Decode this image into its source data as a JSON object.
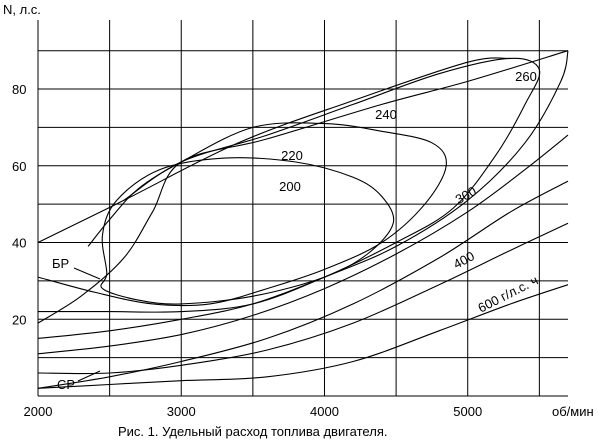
{
  "chart_data": {
    "type": "line",
    "title": "",
    "caption": "Рис. 1. Удельный расход топлива двигателя.",
    "xlabel": "об/мин",
    "ylabel": "N, л.с.",
    "xlim": [
      2000,
      5700
    ],
    "ylim": [
      0,
      98
    ],
    "x_ticks": [
      2000,
      3000,
      4000,
      5000
    ],
    "y_ticks": [
      20,
      40,
      60,
      80
    ],
    "grid": true,
    "colors": {
      "line": "#000000",
      "grid": "#000000",
      "background": "#ffffff"
    },
    "boundaries": [
      {
        "label": "",
        "points": [
          [
            2000,
            40
          ],
          [
            2600,
            51
          ],
          [
            3400,
            66
          ],
          [
            4200,
            77
          ],
          [
            5000,
            87
          ],
          [
            5300,
            88
          ]
        ]
      },
      {
        "label": "БР",
        "points": [
          [
            2000,
            19
          ],
          [
            2300,
            26
          ],
          [
            2600,
            36
          ],
          [
            2800,
            48
          ],
          [
            3000,
            61
          ],
          [
            3600,
            67
          ],
          [
            4400,
            76
          ],
          [
            5000,
            82
          ],
          [
            5700,
            90
          ]
        ]
      },
      {
        "label": "СР",
        "points": [
          [
            2000,
            2
          ],
          [
            2500,
            5
          ],
          [
            3000,
            9
          ],
          [
            3600,
            15
          ],
          [
            4200,
            24
          ],
          [
            4800,
            36
          ],
          [
            5300,
            48
          ],
          [
            5700,
            56
          ]
        ]
      }
    ],
    "contours": [
      {
        "label": "200",
        "points": [
          [
            2450,
            28
          ],
          [
            2700,
            25
          ],
          [
            3000,
            24
          ],
          [
            3500,
            26
          ],
          [
            4000,
            31
          ],
          [
            4300,
            37
          ],
          [
            4480,
            45
          ],
          [
            4400,
            52
          ],
          [
            4200,
            57
          ],
          [
            3800,
            61
          ],
          [
            3300,
            62
          ],
          [
            2850,
            59
          ],
          [
            2550,
            51
          ],
          [
            2450,
            42
          ],
          [
            2480,
            32
          ]
        ]
      },
      {
        "label": "220",
        "points": [
          [
            2000,
            31
          ],
          [
            2400,
            27
          ],
          [
            2800,
            24
          ],
          [
            3200,
            24
          ],
          [
            3600,
            28
          ],
          [
            4000,
            33
          ],
          [
            4400,
            40
          ],
          [
            4700,
            50
          ],
          [
            4850,
            60
          ],
          [
            4750,
            66
          ],
          [
            4400,
            69
          ],
          [
            4000,
            71
          ],
          [
            3500,
            70
          ],
          [
            3000,
            61
          ],
          [
            2700,
            54
          ],
          [
            2500,
            46
          ],
          [
            2350,
            39
          ]
        ]
      },
      {
        "label": "240",
        "points": [
          [
            2000,
            22
          ],
          [
            2500,
            22
          ],
          [
            3000,
            22
          ],
          [
            3500,
            24
          ],
          [
            4000,
            31
          ],
          [
            4500,
            40
          ],
          [
            4900,
            49
          ],
          [
            5200,
            63
          ],
          [
            5400,
            76
          ],
          [
            5500,
            85
          ],
          [
            5300,
            88
          ],
          [
            4800,
            84
          ],
          [
            4200,
            76
          ],
          [
            3600,
            68
          ],
          [
            3000,
            61
          ],
          [
            2600,
            51
          ]
        ]
      },
      {
        "label": "260",
        "points": [
          [
            2000,
            15
          ],
          [
            2500,
            17
          ],
          [
            3000,
            20
          ],
          [
            3500,
            24
          ],
          [
            4000,
            31
          ],
          [
            4500,
            39
          ],
          [
            5000,
            51
          ],
          [
            5400,
            66
          ],
          [
            5650,
            82
          ],
          [
            5700,
            90
          ]
        ]
      },
      {
        "label": "300",
        "points": [
          [
            2000,
            11
          ],
          [
            2500,
            13
          ],
          [
            3000,
            16
          ],
          [
            3500,
            21
          ],
          [
            4000,
            28
          ],
          [
            4500,
            37
          ],
          [
            5000,
            48
          ],
          [
            5400,
            59
          ],
          [
            5700,
            68
          ]
        ]
      },
      {
        "label": "400",
        "points": [
          [
            2000,
            6
          ],
          [
            2500,
            6
          ],
          [
            3000,
            8
          ],
          [
            3600,
            12
          ],
          [
            4200,
            19
          ],
          [
            4800,
            29
          ],
          [
            5300,
            38
          ],
          [
            5700,
            45
          ]
        ]
      },
      {
        "label": "600 г/л.с. ч",
        "points": [
          [
            2000,
            2
          ],
          [
            2500,
            3
          ],
          [
            3000,
            4
          ],
          [
            3600,
            5
          ],
          [
            4200,
            9
          ],
          [
            4800,
            17
          ],
          [
            5300,
            24
          ],
          [
            5700,
            29
          ]
        ]
      }
    ]
  }
}
